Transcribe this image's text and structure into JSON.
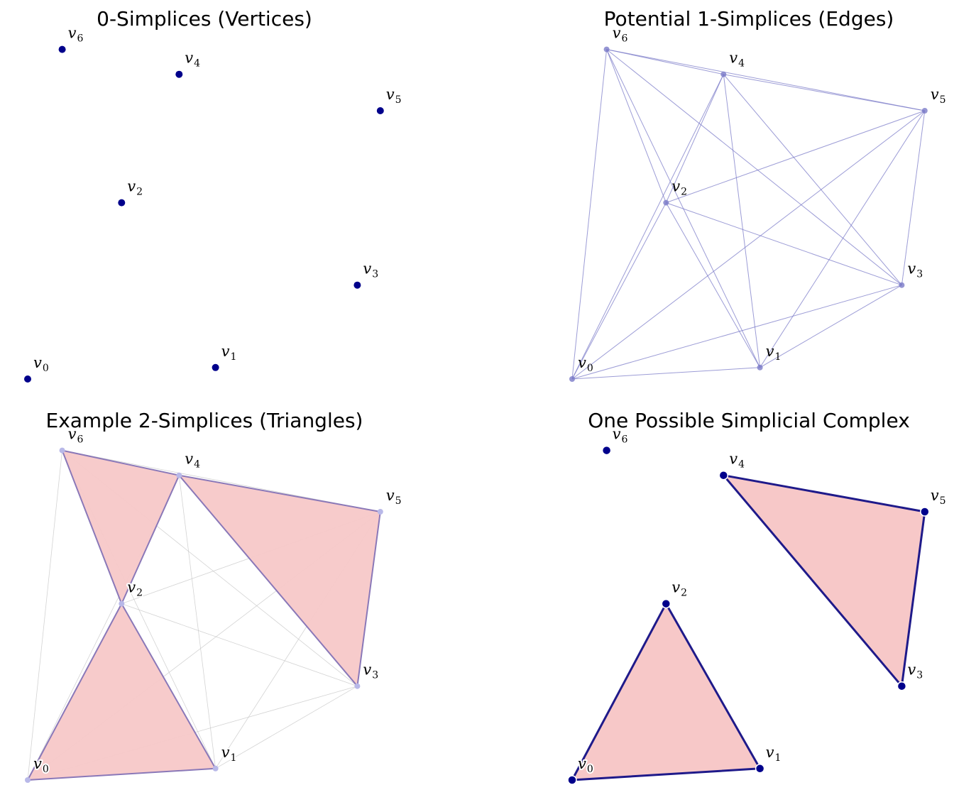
{
  "figure": {
    "vertices": [
      {
        "id": "v0",
        "base": "v",
        "sub": "0",
        "x": 0.0,
        "y": 0.0
      },
      {
        "id": "v1",
        "base": "v",
        "sub": "1",
        "x": 4.9,
        "y": 0.3
      },
      {
        "id": "v2",
        "base": "v",
        "sub": "2",
        "x": 2.45,
        "y": 4.6
      },
      {
        "id": "v3",
        "base": "v",
        "sub": "3",
        "x": 8.6,
        "y": 2.45
      },
      {
        "id": "v4",
        "base": "v",
        "sub": "4",
        "x": 3.95,
        "y": 7.95
      },
      {
        "id": "v5",
        "base": "v",
        "sub": "5",
        "x": 9.2,
        "y": 7.0
      },
      {
        "id": "v6",
        "base": "v",
        "sub": "6",
        "x": 0.9,
        "y": 8.6
      }
    ],
    "colors": {
      "vertex": "#00008b",
      "edge": "#7b7bc8",
      "triangle_fill": "#f7c8c8",
      "triangle_edge": "#8a78b8",
      "complex_edge": "#1f1a8a",
      "faint_edge": "#c8c8c8"
    },
    "panels": [
      {
        "key": "vertices",
        "title": "0-Simplices (Vertices)"
      },
      {
        "key": "edges",
        "title": "Potential 1-Simplices (Edges)"
      },
      {
        "key": "triangles",
        "title": "Example 2-Simplices (Triangles)",
        "triangles": [
          [
            "v0",
            "v1",
            "v2"
          ],
          [
            "v2",
            "v4",
            "v6"
          ],
          [
            "v3",
            "v4",
            "v5"
          ]
        ]
      },
      {
        "key": "complex",
        "title": "One Possible Simplicial Complex",
        "triangles": [
          [
            "v0",
            "v1",
            "v2"
          ],
          [
            "v3",
            "v4",
            "v5"
          ]
        ],
        "isolated": [
          "v6"
        ]
      }
    ]
  }
}
